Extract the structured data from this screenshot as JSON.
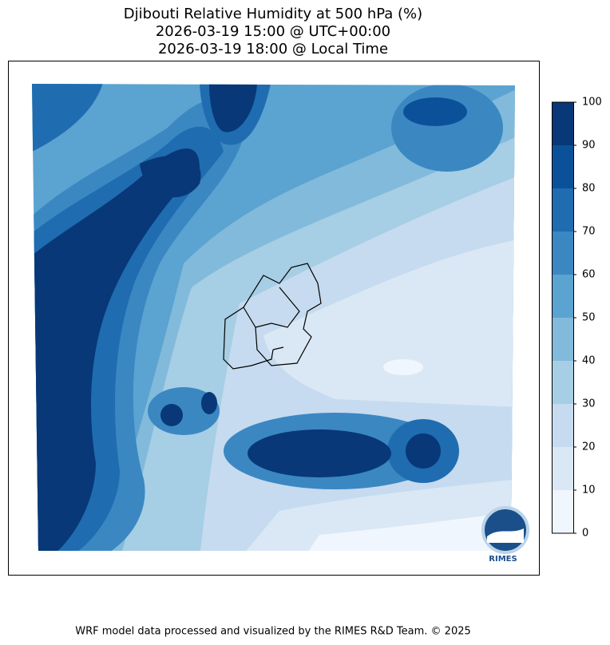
{
  "header": {
    "title_lines": [
      "Djibouti Relative Humidity at 500 hPa (%)",
      "2026-03-19 15:00 @ UTC+00:00",
      "2026-03-19 18:00 @ Local Time"
    ]
  },
  "colorbar": {
    "ylim": [
      0,
      100
    ],
    "ticks": [
      0,
      10,
      20,
      30,
      40,
      50,
      60,
      70,
      80,
      90,
      100
    ],
    "colors": [
      "#f0f6fd",
      "#dae8f5",
      "#c6dbef",
      "#a6cee4",
      "#82badb",
      "#5ba3d0",
      "#3b87c2",
      "#1f6cb1",
      "#0b5199",
      "#083877"
    ]
  },
  "logo": {
    "text": "RIMES"
  },
  "footer": {
    "text": "WRF model data processed and visualized by the RIMES R&D Team. © 2025"
  }
}
